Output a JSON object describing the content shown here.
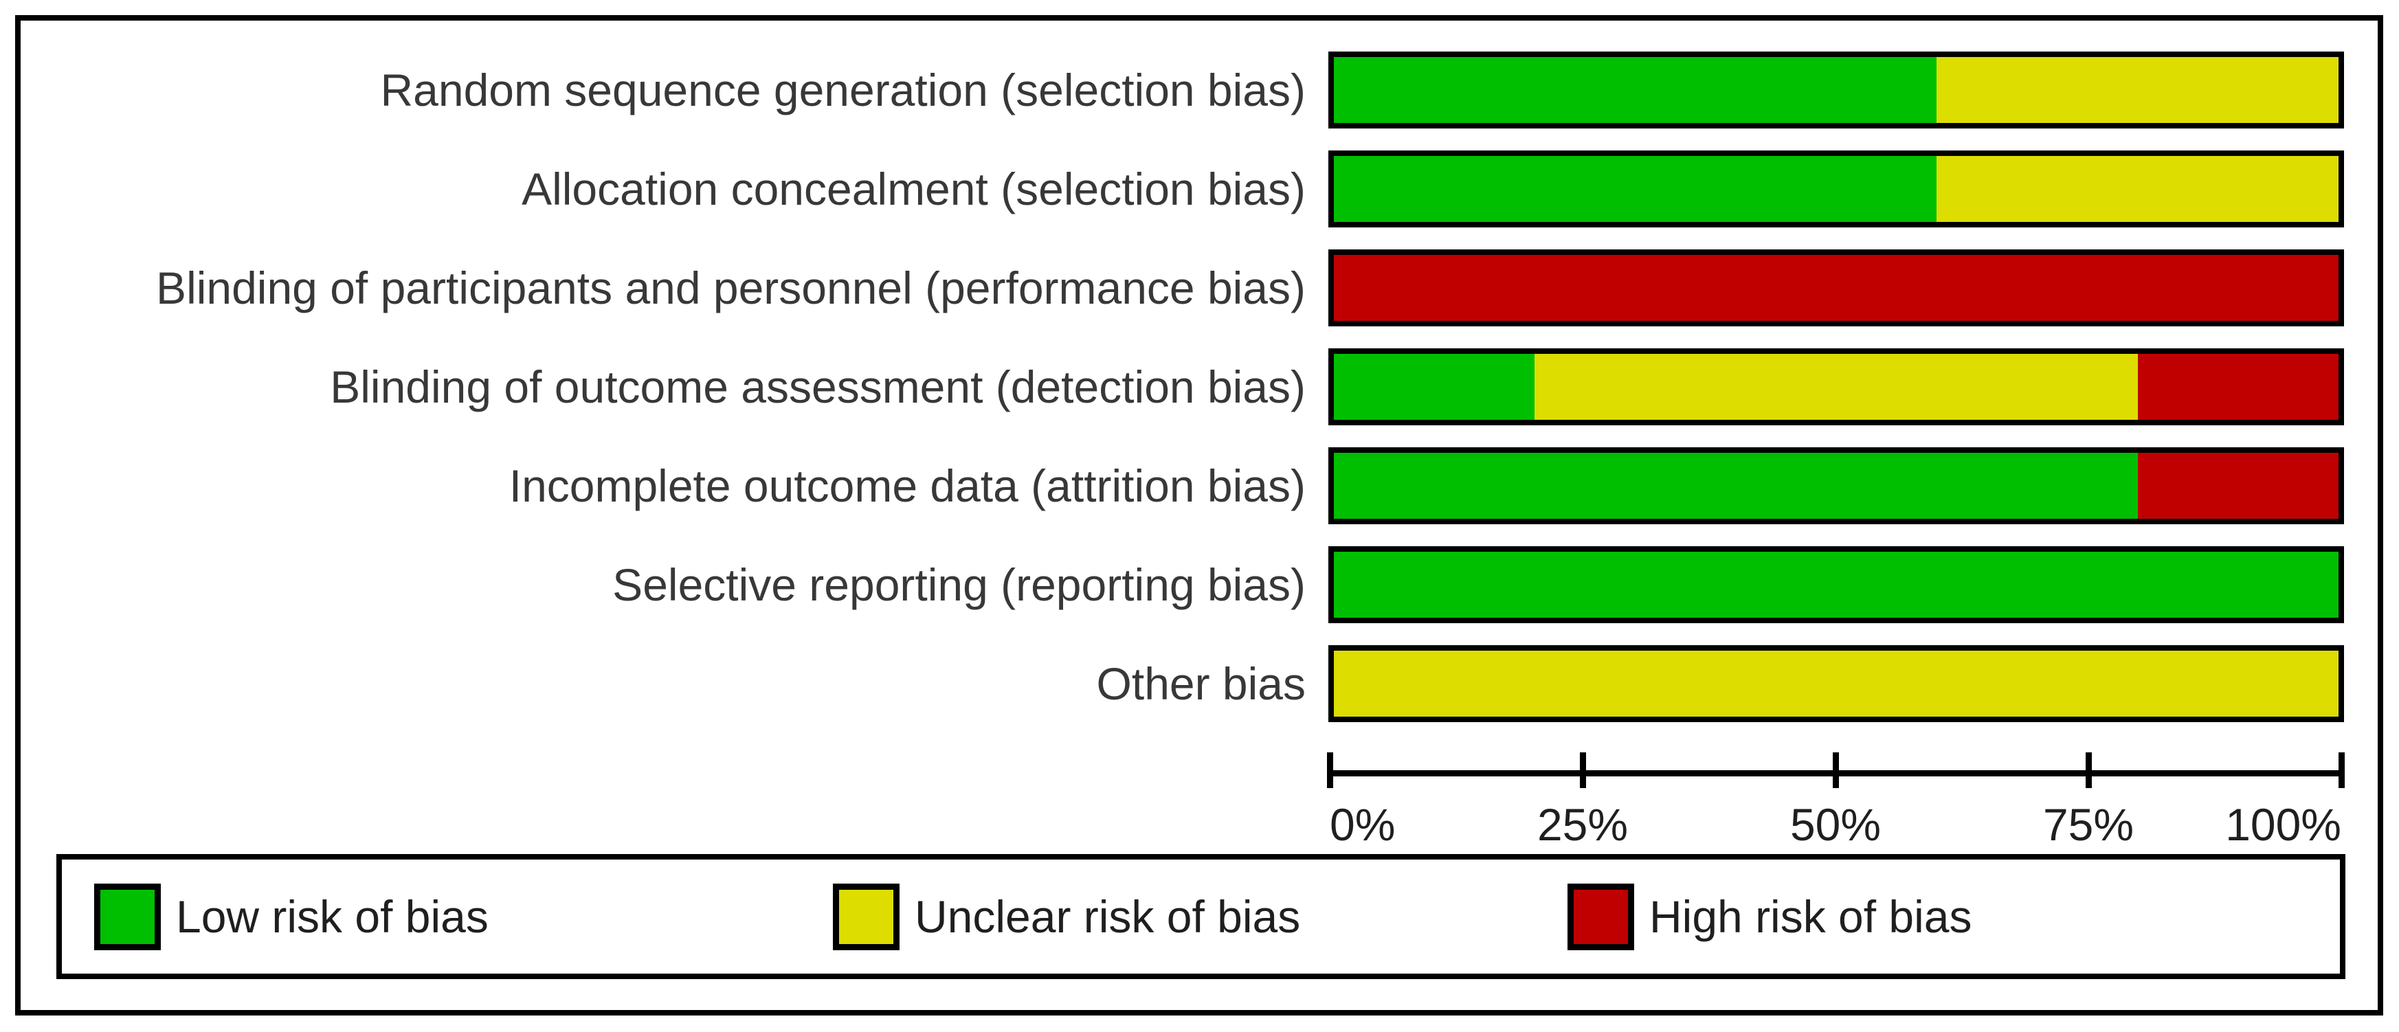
{
  "chart_data": {
    "type": "bar",
    "variant": "horizontal_stacked_100pct",
    "title": "",
    "categories": [
      "Random sequence generation (selection bias)",
      "Allocation concealment (selection bias)",
      "Blinding of participants and personnel (performance bias)",
      "Blinding of outcome assessment (detection bias)",
      "Incomplete outcome data (attrition bias)",
      "Selective reporting (reporting bias)",
      "Other bias"
    ],
    "series": [
      {
        "id": "low",
        "name": "Low risk of bias",
        "color": "#00BF00",
        "values": [
          60,
          60,
          0,
          20,
          80,
          100,
          0
        ]
      },
      {
        "id": "unclear",
        "name": "Unclear risk of bias",
        "color": "#DDDD00",
        "values": [
          40,
          40,
          0,
          60,
          0,
          0,
          100
        ]
      },
      {
        "id": "high",
        "name": "High risk of bias",
        "color": "#C00000",
        "values": [
          0,
          0,
          100,
          20,
          20,
          0,
          0
        ]
      }
    ],
    "x_axis": {
      "range": [
        0,
        100
      ],
      "unit": "%",
      "tick_values": [
        0,
        25,
        50,
        75,
        100
      ],
      "tick_labels": [
        "0%",
        "25%",
        "50%",
        "75%",
        "100%"
      ],
      "grid": false
    },
    "legend_position": "bottom",
    "border_color": "#000000",
    "label_text_color": "#383838"
  }
}
